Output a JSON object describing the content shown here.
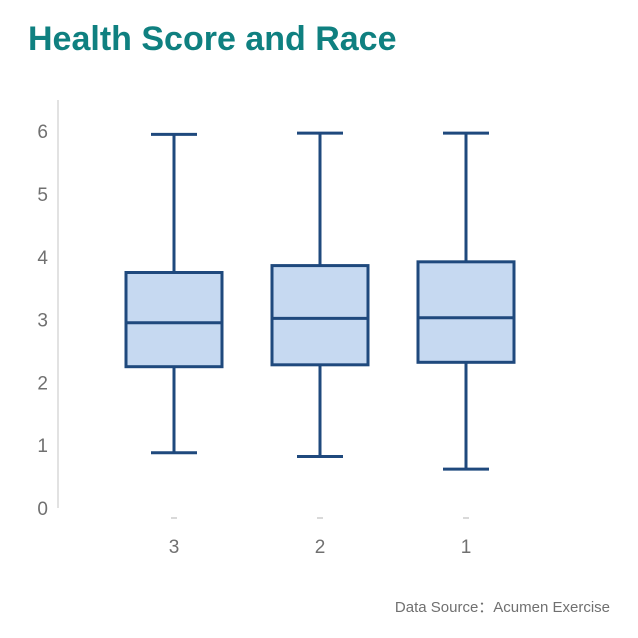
{
  "title": "Health Score and Race",
  "source": "Data Source：Acumen Exercise",
  "chart_data": {
    "type": "boxplot",
    "title": "Health Score and Race",
    "xlabel": "",
    "ylabel": "",
    "ylim": [
      0,
      6.5
    ],
    "yticks": [
      0,
      1,
      2,
      3,
      4,
      5,
      6
    ],
    "categories": [
      "3",
      "2",
      "1"
    ],
    "boxes": [
      {
        "category": "3",
        "min": 0.88,
        "q1": 2.25,
        "median": 2.95,
        "q3": 3.75,
        "max": 5.95
      },
      {
        "category": "2",
        "min": 0.82,
        "q1": 2.28,
        "median": 3.02,
        "q3": 3.86,
        "max": 5.97
      },
      {
        "category": "1",
        "min": 0.62,
        "q1": 2.32,
        "median": 3.03,
        "q3": 3.92,
        "max": 5.97
      }
    ],
    "grid": false,
    "colors": {
      "box_fill": "#c6d9f1",
      "box_stroke": "#1f497d",
      "axis": "#d9d9d9",
      "tick_text": "#707070",
      "title": "#0f8080"
    }
  }
}
